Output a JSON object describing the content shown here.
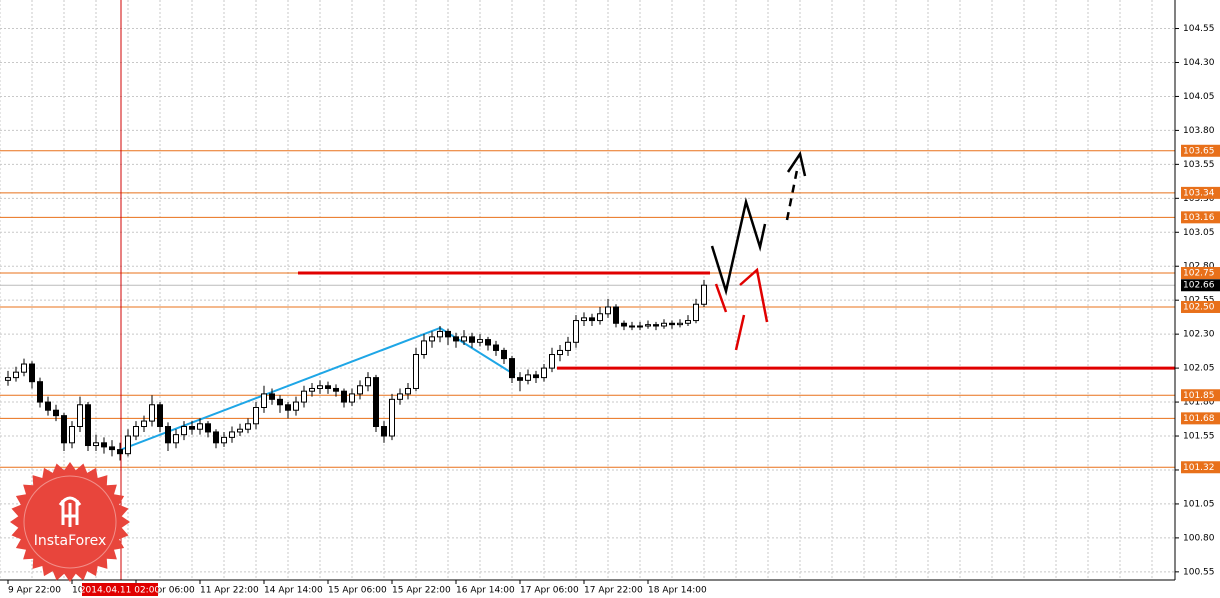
{
  "chart_data": {
    "type": "candlestick",
    "categories": [
      "9 Apr 22:00",
      null,
      null,
      null,
      null,
      null,
      null,
      null,
      "10 Apr 14:00",
      null,
      null,
      null,
      null,
      null,
      null,
      null,
      "11 Apr 06:00",
      null,
      null,
      null,
      null,
      null,
      null,
      null,
      "11 Apr 22:00",
      null,
      null,
      null,
      null,
      null,
      null,
      null,
      "14 Apr 14:00",
      null,
      null,
      null,
      null,
      null,
      null,
      null,
      "15 Apr 06:00",
      null,
      null,
      null,
      null,
      null,
      null,
      null,
      "15 Apr 22:00",
      null,
      null,
      null,
      null,
      null,
      null,
      null,
      "16 Apr 14:00",
      null,
      null,
      null,
      null,
      null,
      null,
      null,
      "17 Apr 06:00",
      null,
      null,
      null,
      null,
      null,
      null,
      null,
      "17 Apr 22:00",
      null,
      null,
      null,
      null,
      null,
      null,
      null,
      "18 Apr 14:00",
      null,
      null,
      null,
      null,
      null,
      null,
      null
    ],
    "ohlc": [
      [
        101.96,
        102.03,
        101.92,
        101.98
      ],
      [
        101.98,
        102.06,
        101.95,
        102.02
      ],
      [
        102.02,
        102.12,
        101.99,
        102.08
      ],
      [
        102.08,
        102.1,
        101.9,
        101.95
      ],
      [
        101.95,
        101.98,
        101.76,
        101.8
      ],
      [
        101.8,
        101.84,
        101.7,
        101.74
      ],
      [
        101.74,
        101.78,
        101.66,
        101.7
      ],
      [
        101.7,
        101.72,
        101.44,
        101.5
      ],
      [
        101.5,
        101.66,
        101.46,
        101.62
      ],
      [
        101.62,
        101.84,
        101.58,
        101.78
      ],
      [
        101.78,
        101.8,
        101.44,
        101.48
      ],
      [
        101.48,
        101.56,
        101.44,
        101.5
      ],
      [
        101.5,
        101.54,
        101.42,
        101.47
      ],
      [
        101.47,
        101.52,
        101.4,
        101.45
      ],
      [
        101.45,
        101.5,
        101.37,
        101.42
      ],
      [
        101.42,
        101.6,
        101.4,
        101.55
      ],
      [
        101.55,
        101.66,
        101.52,
        101.62
      ],
      [
        101.62,
        101.7,
        101.58,
        101.66
      ],
      [
        101.66,
        101.85,
        101.62,
        101.78
      ],
      [
        101.78,
        101.8,
        101.58,
        101.62
      ],
      [
        101.62,
        101.65,
        101.44,
        101.5
      ],
      [
        101.5,
        101.6,
        101.46,
        101.56
      ],
      [
        101.56,
        101.66,
        101.52,
        101.62
      ],
      [
        101.62,
        101.66,
        101.56,
        101.6
      ],
      [
        101.6,
        101.68,
        101.56,
        101.64
      ],
      [
        101.64,
        101.66,
        101.54,
        101.58
      ],
      [
        101.58,
        101.6,
        101.46,
        101.5
      ],
      [
        101.5,
        101.58,
        101.47,
        101.54
      ],
      [
        101.54,
        101.62,
        101.5,
        101.58
      ],
      [
        101.58,
        101.64,
        101.55,
        101.6
      ],
      [
        101.6,
        101.68,
        101.57,
        101.64
      ],
      [
        101.64,
        101.8,
        101.6,
        101.76
      ],
      [
        101.76,
        101.92,
        101.72,
        101.86
      ],
      [
        101.86,
        101.9,
        101.78,
        101.82
      ],
      [
        101.82,
        101.85,
        101.72,
        101.78
      ],
      [
        101.78,
        101.8,
        101.68,
        101.74
      ],
      [
        101.74,
        101.84,
        101.7,
        101.8
      ],
      [
        101.8,
        101.92,
        101.76,
        101.88
      ],
      [
        101.88,
        101.94,
        101.84,
        101.9
      ],
      [
        101.9,
        101.96,
        101.86,
        101.92
      ],
      [
        101.92,
        101.95,
        101.86,
        101.9
      ],
      [
        101.9,
        101.93,
        101.84,
        101.88
      ],
      [
        101.88,
        101.9,
        101.76,
        101.8
      ],
      [
        101.8,
        101.9,
        101.77,
        101.86
      ],
      [
        101.86,
        101.96,
        101.82,
        101.92
      ],
      [
        101.92,
        102.02,
        101.88,
        101.98
      ],
      [
        101.98,
        102.0,
        101.58,
        101.62
      ],
      [
        101.62,
        101.66,
        101.5,
        101.55
      ],
      [
        101.55,
        101.86,
        101.52,
        101.82
      ],
      [
        101.82,
        101.9,
        101.78,
        101.86
      ],
      [
        101.86,
        101.94,
        101.82,
        101.9
      ],
      [
        101.9,
        102.2,
        101.88,
        102.15
      ],
      [
        102.15,
        102.3,
        102.12,
        102.25
      ],
      [
        102.25,
        102.32,
        102.2,
        102.28
      ],
      [
        102.28,
        102.36,
        102.24,
        102.32
      ],
      [
        102.32,
        102.34,
        102.22,
        102.28
      ],
      [
        102.28,
        102.31,
        102.2,
        102.25
      ],
      [
        102.25,
        102.33,
        102.22,
        102.28
      ],
      [
        102.28,
        102.31,
        102.2,
        102.24
      ],
      [
        102.24,
        102.3,
        102.21,
        102.26
      ],
      [
        102.26,
        102.28,
        102.18,
        102.22
      ],
      [
        102.22,
        102.25,
        102.14,
        102.18
      ],
      [
        102.18,
        102.2,
        102.08,
        102.12
      ],
      [
        102.12,
        102.14,
        101.94,
        101.98
      ],
      [
        101.98,
        102.02,
        101.88,
        101.96
      ],
      [
        101.96,
        102.04,
        101.93,
        102.0
      ],
      [
        102.0,
        102.03,
        101.94,
        101.98
      ],
      [
        101.98,
        102.08,
        101.95,
        102.05
      ],
      [
        102.05,
        102.2,
        102.02,
        102.15
      ],
      [
        102.15,
        102.22,
        102.1,
        102.18
      ],
      [
        102.18,
        102.28,
        102.14,
        102.24
      ],
      [
        102.24,
        102.44,
        102.2,
        102.4
      ],
      [
        102.4,
        102.46,
        102.36,
        102.42
      ],
      [
        102.42,
        102.45,
        102.36,
        102.4
      ],
      [
        102.4,
        102.5,
        102.37,
        102.45
      ],
      [
        102.45,
        102.56,
        102.42,
        102.5
      ],
      [
        102.5,
        102.52,
        102.35,
        102.38
      ],
      [
        102.38,
        102.4,
        102.33,
        102.36
      ],
      [
        102.36,
        102.39,
        102.33,
        102.36
      ],
      [
        102.36,
        102.39,
        102.33,
        102.36
      ],
      [
        102.36,
        102.4,
        102.34,
        102.37
      ],
      [
        102.37,
        102.39,
        102.33,
        102.36
      ],
      [
        102.36,
        102.41,
        102.34,
        102.38
      ],
      [
        102.38,
        102.4,
        102.34,
        102.37
      ],
      [
        102.37,
        102.41,
        102.35,
        102.38
      ],
      [
        102.38,
        102.44,
        102.36,
        102.4
      ],
      [
        102.4,
        102.56,
        102.38,
        102.52
      ],
      [
        102.52,
        102.7,
        102.5,
        102.66
      ]
    ],
    "ylim": [
      100.49,
      104.76
    ],
    "yticks": [
      100.55,
      {
        "value": 100.8,
        "label": "100.80"
      },
      101.05,
      {
        "value": 101.3,
        "label": "101.30"
      },
      101.55,
      {
        "value": 101.8,
        "label": "101.80"
      },
      102.05,
      {
        "value": 102.3,
        "label": "102.30"
      },
      102.55,
      {
        "value": 102.8,
        "label": "102.80"
      },
      103.05,
      {
        "value": 103.3,
        "label": "103.30"
      },
      103.55,
      {
        "value": 103.8,
        "label": "103.80"
      },
      104.05,
      {
        "value": 104.3,
        "label": "104.30"
      },
      104.55
    ],
    "levels": [
      103.65,
      103.34,
      103.16,
      102.75,
      {
        "value": 102.5,
        "label": "102.50"
      },
      101.85,
      101.68,
      101.32
    ],
    "level_color": "#e8701a",
    "red_lines": [
      102.75,
      102.05
    ],
    "candle_up_color": "#ffffff",
    "candle_down_color": "#000000",
    "grid": true,
    "cursor_label": "2014.04.11 02:00",
    "logo_text": "InstaForex"
  }
}
